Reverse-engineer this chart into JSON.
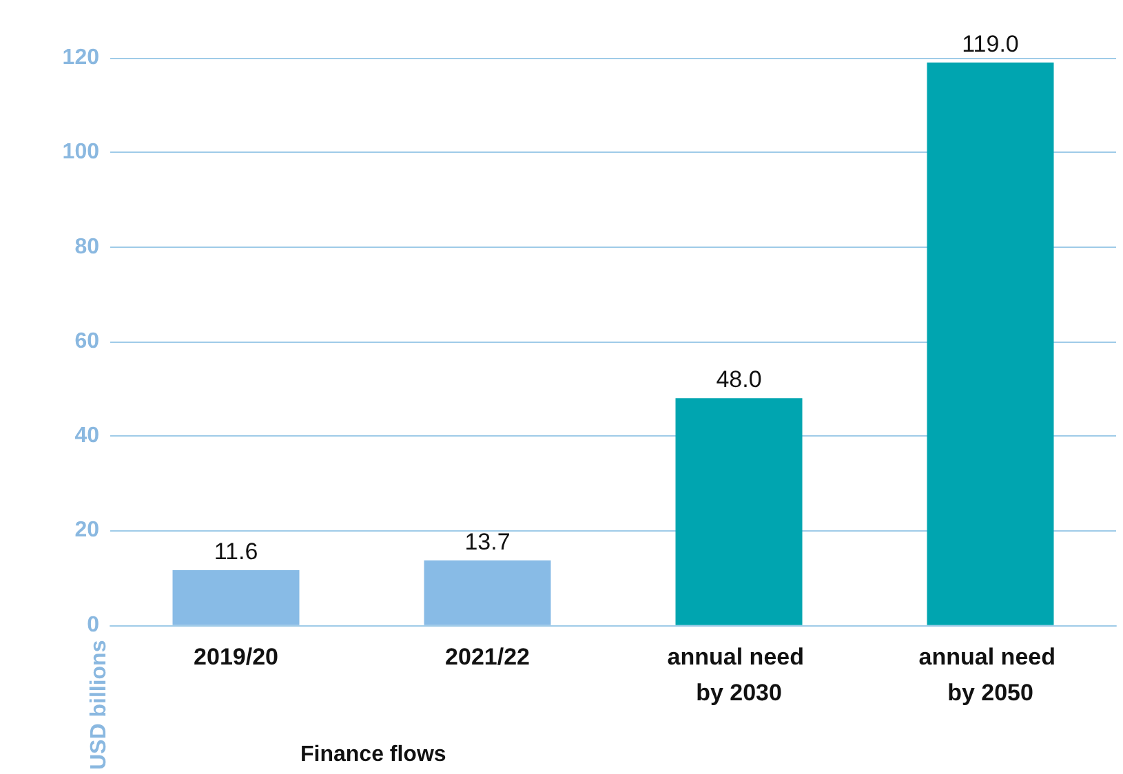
{
  "chart_data": {
    "type": "bar",
    "xlabel": "Finance flows",
    "ylabel": "USD billions",
    "categories": [
      "2019/20",
      "2021/22",
      "annual need by 2030",
      "annual need by 2050"
    ],
    "values": [
      11.6,
      13.7,
      48.0,
      119.0
    ],
    "colors": [
      "#88bbe6",
      "#88bbe6",
      "#00a5b0",
      "#00a5b0"
    ],
    "value_labels": [
      "11.6",
      "13.7",
      "48.0",
      "119.0"
    ],
    "ylim": [
      0,
      120
    ],
    "yticks": [
      0,
      20,
      40,
      60,
      80,
      100,
      120
    ],
    "grid": "y"
  }
}
